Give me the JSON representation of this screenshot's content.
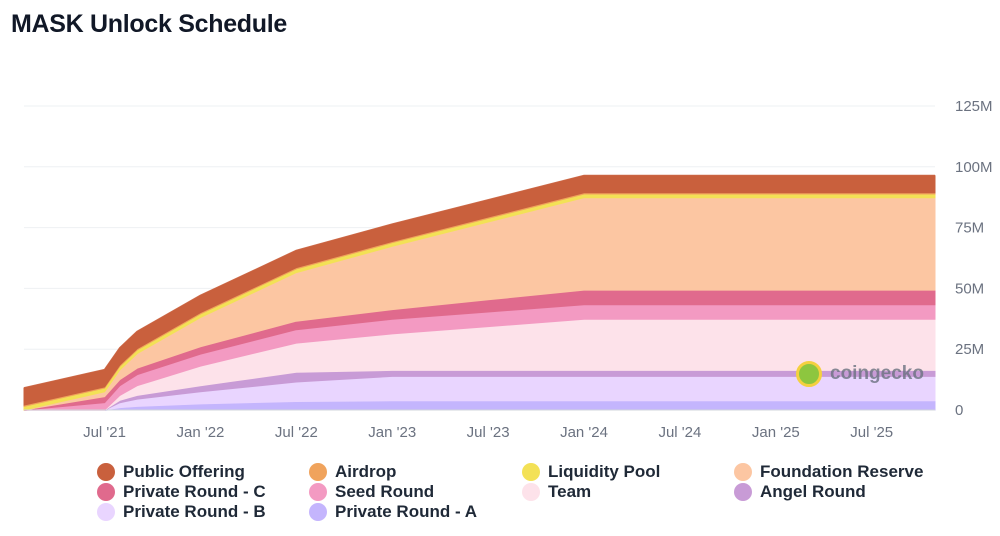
{
  "chart_data": {
    "type": "area",
    "stacked": true,
    "title": "MASK Unlock Schedule",
    "xlabel": "",
    "ylabel": "",
    "y_unit": "M",
    "ylim": [
      0,
      125
    ],
    "y_ticks": [
      0,
      25,
      50,
      75,
      100,
      125
    ],
    "y_tick_labels": [
      "0",
      "25M",
      "50M",
      "75M",
      "100M",
      "125M"
    ],
    "x_ticks": [
      2021.5,
      2022.0,
      2022.5,
      2023.0,
      2023.5,
      2024.0,
      2024.5,
      2025.0,
      2025.5
    ],
    "x_tick_labels": [
      "Jul '21",
      "Jan '22",
      "Jul '22",
      "Jan '23",
      "Jul '23",
      "Jan '24",
      "Jul '24",
      "Jan '25",
      "Jul '25"
    ],
    "xlim": [
      2021.08,
      2025.83
    ],
    "x": [
      2021.08,
      2021.5,
      2021.58,
      2021.67,
      2022.0,
      2022.5,
      2023.0,
      2023.5,
      2024.0,
      2024.5,
      2025.0,
      2025.5,
      2025.83
    ],
    "grid": true,
    "legend_position": "bottom",
    "series": [
      {
        "name": "Private Round - A",
        "color": "#c4b5fd",
        "values": [
          0,
          0,
          1,
          1.5,
          2.5,
          3.5,
          3.8,
          3.8,
          3.8,
          3.8,
          3.8,
          3.8,
          3.8
        ]
      },
      {
        "name": "Private Round - B",
        "color": "#e9d5ff",
        "values": [
          0,
          0,
          2,
          3,
          5,
          8,
          10,
          10,
          10,
          10,
          10,
          10,
          10
        ]
      },
      {
        "name": "Angel Round",
        "color": "#c89bd6",
        "values": [
          0,
          0,
          1,
          1.5,
          2.5,
          4,
          2.5,
          2.5,
          2.5,
          2.5,
          2.5,
          2.5,
          2.5
        ]
      },
      {
        "name": "Team",
        "color": "#fde2ea",
        "values": [
          0,
          0,
          2,
          4,
          8,
          12,
          15,
          18,
          21,
          21,
          21,
          21,
          21
        ]
      },
      {
        "name": "Seed Round",
        "color": "#f39ac2",
        "values": [
          0,
          3,
          4,
          4.5,
          5,
          5.5,
          6,
          6,
          6,
          6,
          6,
          6,
          6
        ]
      },
      {
        "name": "Private Round - C",
        "color": "#e06a8d",
        "values": [
          0,
          2.5,
          2.5,
          2.7,
          3,
          3.5,
          4,
          5,
          6,
          6,
          6,
          6,
          6
        ]
      },
      {
        "name": "Foundation Reserve",
        "color": "#fcc6a2",
        "values": [
          0,
          2,
          4,
          6,
          12,
          20,
          26,
          32,
          38,
          38,
          38,
          38,
          38
        ]
      },
      {
        "name": "Liquidity Pool",
        "color": "#f3e156",
        "values": [
          1.5,
          1.5,
          1.5,
          1.5,
          1.5,
          1.5,
          1.5,
          1.5,
          1.5,
          1.5,
          1.5,
          1.5,
          1.5
        ]
      },
      {
        "name": "Airdrop",
        "color": "#f0a35c",
        "values": [
          0.5,
          0.5,
          0.5,
          0.5,
          0.5,
          0.5,
          0.5,
          0.5,
          0.5,
          0.5,
          0.5,
          0.5,
          0.5
        ]
      },
      {
        "name": "Public Offering",
        "color": "#c9603d",
        "values": [
          7,
          7,
          7,
          7,
          7,
          7,
          7,
          7,
          7,
          7,
          7,
          7,
          7
        ]
      }
    ]
  },
  "legend": [
    {
      "label": "Public Offering",
      "color": "#c9603d"
    },
    {
      "label": "Airdrop",
      "color": "#f0a35c"
    },
    {
      "label": "Liquidity Pool",
      "color": "#f3e156"
    },
    {
      "label": "Foundation Reserve",
      "color": "#fcc6a2"
    },
    {
      "label": "Private Round - C",
      "color": "#e06a8d"
    },
    {
      "label": "Seed Round",
      "color": "#f39ac2"
    },
    {
      "label": "Team",
      "color": "#fde2ea"
    },
    {
      "label": "Angel Round",
      "color": "#c89bd6"
    },
    {
      "label": "Private Round - B",
      "color": "#e9d5ff"
    },
    {
      "label": "Private Round - A",
      "color": "#c4b5fd"
    }
  ],
  "watermark": {
    "text": "coingecko",
    "icon": "coingecko-gecko-icon"
  }
}
